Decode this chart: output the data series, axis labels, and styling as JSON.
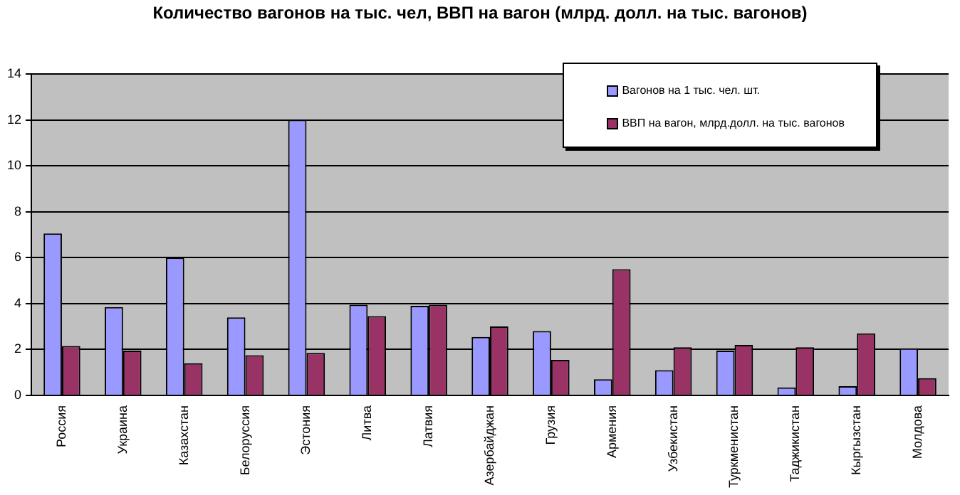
{
  "chart_data": {
    "type": "bar",
    "title": "Количество вагонов на тыс. чел, ВВП на вагон (млрд. долл. на тыс. вагонов)",
    "categories": [
      "Россия",
      "Украина",
      "Казахстан",
      "Белоруссия",
      "Эстония",
      "Литва",
      "Латвия",
      "Азербайджан",
      "Грузия",
      "Армения",
      "Узбекистан",
      "Туркменистан",
      "Таджикистан",
      "Кыргызстан",
      "Молдова"
    ],
    "series": [
      {
        "name": "Вагонов на 1 тыс. чел. шт.",
        "color": "#9999ff",
        "values": [
          7.05,
          3.85,
          6.0,
          3.4,
          12.0,
          3.95,
          3.9,
          2.55,
          2.8,
          0.7,
          1.1,
          1.95,
          0.35,
          0.4,
          2.05
        ]
      },
      {
        "name": "ВВП на вагон, млрд.долл. на тыс. вагонов",
        "color": "#993366",
        "values": [
          2.15,
          1.95,
          1.4,
          1.75,
          1.85,
          3.45,
          3.95,
          3.0,
          1.55,
          5.5,
          2.1,
          2.2,
          2.1,
          2.7,
          0.75
        ]
      }
    ],
    "ylim": [
      0,
      14
    ],
    "yticks": [
      0,
      2,
      4,
      6,
      8,
      10,
      12,
      14
    ],
    "grid": "y",
    "legend": "top right"
  }
}
